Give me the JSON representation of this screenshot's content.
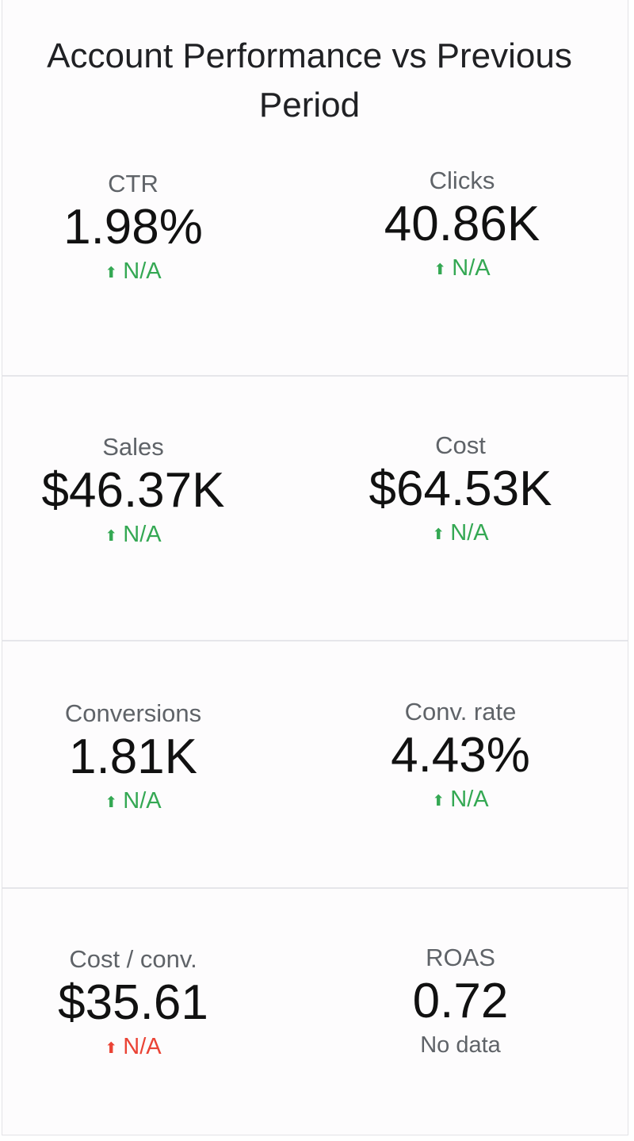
{
  "title": "Account Performance vs Previous Period",
  "colors": {
    "positive": "#34a853",
    "negative": "#ea4335",
    "neutral": "#5f6368"
  },
  "metrics": [
    {
      "label": "CTR",
      "value": "1.98%",
      "delta": "N/A",
      "arrow": "⬆",
      "status": "positive"
    },
    {
      "label": "Clicks",
      "value": "40.86K",
      "delta": "N/A",
      "arrow": "⬆",
      "status": "positive"
    },
    {
      "label": "Sales",
      "value": "$46.37K",
      "delta": "N/A",
      "arrow": "⬆",
      "status": "positive"
    },
    {
      "label": "Cost",
      "value": "$64.53K",
      "delta": "N/A",
      "arrow": "⬆",
      "status": "positive"
    },
    {
      "label": "Conversions",
      "value": "1.81K",
      "delta": "N/A",
      "arrow": "⬆",
      "status": "positive"
    },
    {
      "label": "Conv. rate",
      "value": "4.43%",
      "delta": "N/A",
      "arrow": "⬆",
      "status": "positive"
    },
    {
      "label": "Cost / conv.",
      "value": "$35.61",
      "delta": "N/A",
      "arrow": "⬆",
      "status": "negative"
    },
    {
      "label": "ROAS",
      "value": "0.72",
      "delta": "No data",
      "status": "neutral"
    }
  ]
}
